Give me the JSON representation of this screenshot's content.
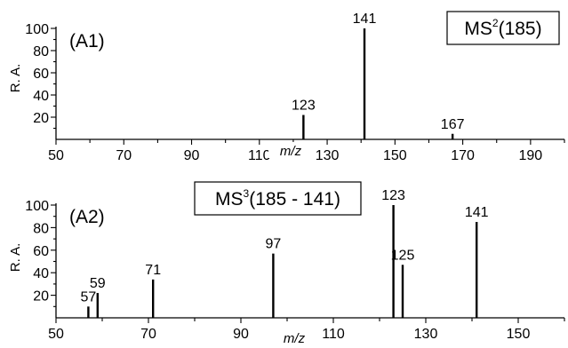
{
  "chart_data": [
    {
      "type": "bar",
      "panel_label": "(A1)",
      "title_main": "MS",
      "title_sup": "2",
      "title_rest": "(185)",
      "xlabel": "m/z",
      "ylabel": "R. A.",
      "xlim": [
        50,
        200
      ],
      "ylim": [
        0,
        100
      ],
      "xticks": [
        50,
        70,
        90,
        110,
        130,
        150,
        170,
        190
      ],
      "yticks": [
        20,
        40,
        60,
        80,
        100
      ],
      "peaks": [
        {
          "x": 123,
          "y": 22,
          "label": "123"
        },
        {
          "x": 141,
          "y": 100,
          "label": "141"
        },
        {
          "x": 167,
          "y": 5,
          "label": "167"
        }
      ]
    },
    {
      "type": "bar",
      "panel_label": "(A2)",
      "title_main": "MS",
      "title_sup": "3",
      "title_rest": "(185 - 141)",
      "xlabel": "m/z",
      "ylabel": "R. A.",
      "xlim": [
        50,
        160
      ],
      "ylim": [
        0,
        100
      ],
      "xticks": [
        50,
        70,
        90,
        110,
        130,
        150
      ],
      "yticks": [
        20,
        40,
        60,
        80,
        100
      ],
      "peaks": [
        {
          "x": 57,
          "y": 10,
          "label": "57"
        },
        {
          "x": 59,
          "y": 22,
          "label": "59"
        },
        {
          "x": 71,
          "y": 34,
          "label": "71"
        },
        {
          "x": 97,
          "y": 57,
          "label": "97"
        },
        {
          "x": 123,
          "y": 100,
          "label": "123"
        },
        {
          "x": 125,
          "y": 47,
          "label": "125"
        },
        {
          "x": 141,
          "y": 85,
          "label": "141"
        }
      ]
    }
  ]
}
